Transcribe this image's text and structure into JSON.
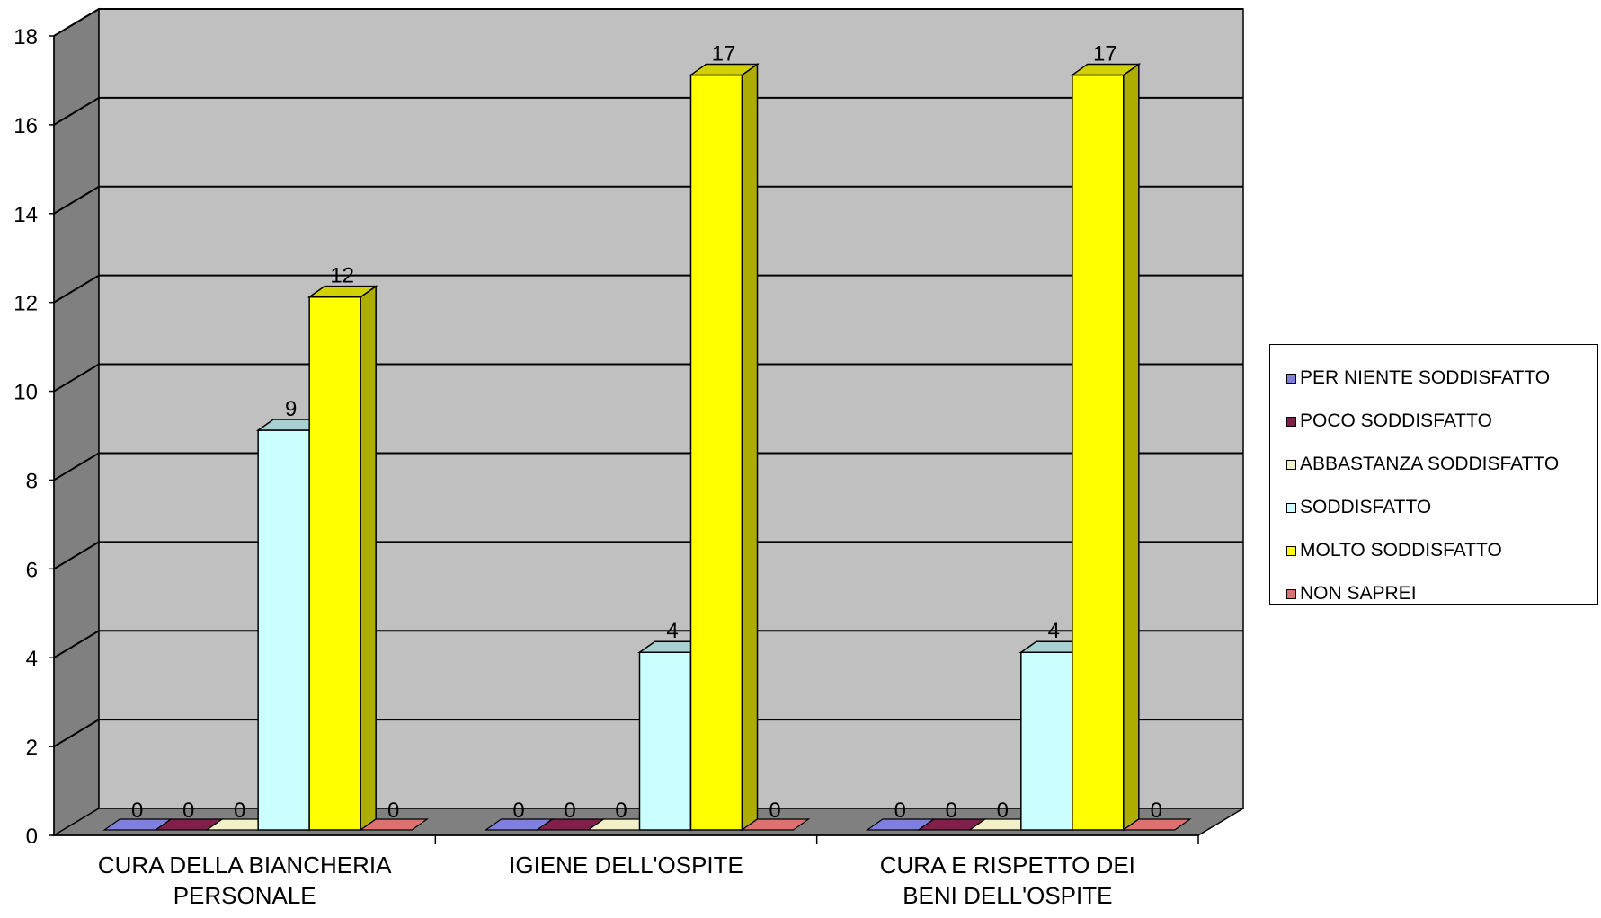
{
  "chart_data": {
    "type": "bar",
    "categories": [
      "CURA DELLA BIANCHERIA PERSONALE",
      "IGIENE DELL'OSPITE",
      "CURA E RISPETTO DEI BENI DELL'OSPITE"
    ],
    "category_lines": [
      [
        "CURA DELLA BIANCHERIA",
        "PERSONALE"
      ],
      [
        "IGIENE DELL'OSPITE"
      ],
      [
        "CURA E RISPETTO DEI",
        "BENI DELL'OSPITE"
      ]
    ],
    "series": [
      {
        "name": "PER NIENTE SODDISFATTO",
        "values": [
          0,
          0,
          0
        ],
        "color": "#7f7fe0"
      },
      {
        "name": "POCO SODDISFATTO",
        "values": [
          0,
          0,
          0
        ],
        "color": "#7f1f4a"
      },
      {
        "name": "ABBASTANZA SODDISFATTO",
        "values": [
          0,
          0,
          0
        ],
        "color": "#f2f0c8"
      },
      {
        "name": "SODDISFATTO",
        "values": [
          9,
          4,
          4
        ],
        "color": "#ccffff"
      },
      {
        "name": "MOLTO SODDISFATTO",
        "values": [
          12,
          17,
          17
        ],
        "color": "#ffff00"
      },
      {
        "name": "NON SAPREI",
        "values": [
          0,
          0,
          0
        ],
        "color": "#e07070"
      }
    ],
    "ylim": [
      0,
      18
    ],
    "yticks": [
      0,
      2,
      4,
      6,
      8,
      10,
      12,
      14,
      16,
      18
    ],
    "grid": true,
    "legend_position": "right",
    "title": "",
    "xlabel": "",
    "ylabel": ""
  }
}
